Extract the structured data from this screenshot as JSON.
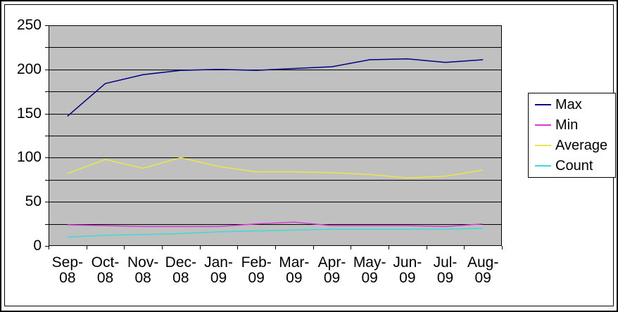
{
  "chart_data": {
    "type": "line",
    "title": "",
    "xlabel": "",
    "ylabel": "",
    "categories": [
      "Sep-08",
      "Oct-08",
      "Nov-08",
      "Dec-08",
      "Jan-09",
      "Feb-09",
      "Mar-09",
      "Apr-09",
      "May-09",
      "Jun-09",
      "Jul-09",
      "Aug-09"
    ],
    "series": [
      {
        "name": "Max",
        "color": "#000080",
        "values": [
          147,
          184,
          194,
          199,
          200,
          199,
          201,
          203,
          211,
          212,
          208,
          211
        ]
      },
      {
        "name": "Min",
        "color": "#d63bd6",
        "values": [
          24,
          23,
          22,
          22,
          22,
          25,
          27,
          23,
          23,
          23,
          22,
          25
        ]
      },
      {
        "name": "Average",
        "color": "#e8e84a",
        "values": [
          82,
          98,
          88,
          100,
          90,
          84,
          84,
          83,
          81,
          77,
          79,
          86
        ]
      },
      {
        "name": "Count",
        "color": "#3fd9d9",
        "values": [
          10,
          12,
          13,
          14,
          16,
          17,
          18,
          19,
          19,
          19,
          19,
          20
        ]
      }
    ],
    "ylim": [
      0,
      250
    ],
    "y_major_tick_labels": [
      0,
      50,
      100,
      150,
      200,
      250
    ],
    "y_gridline_interval": 25,
    "grid": true,
    "legend_position": "right",
    "plot_bg_color": "#c0c0c0",
    "chart_bg_color": "#ffffff"
  }
}
